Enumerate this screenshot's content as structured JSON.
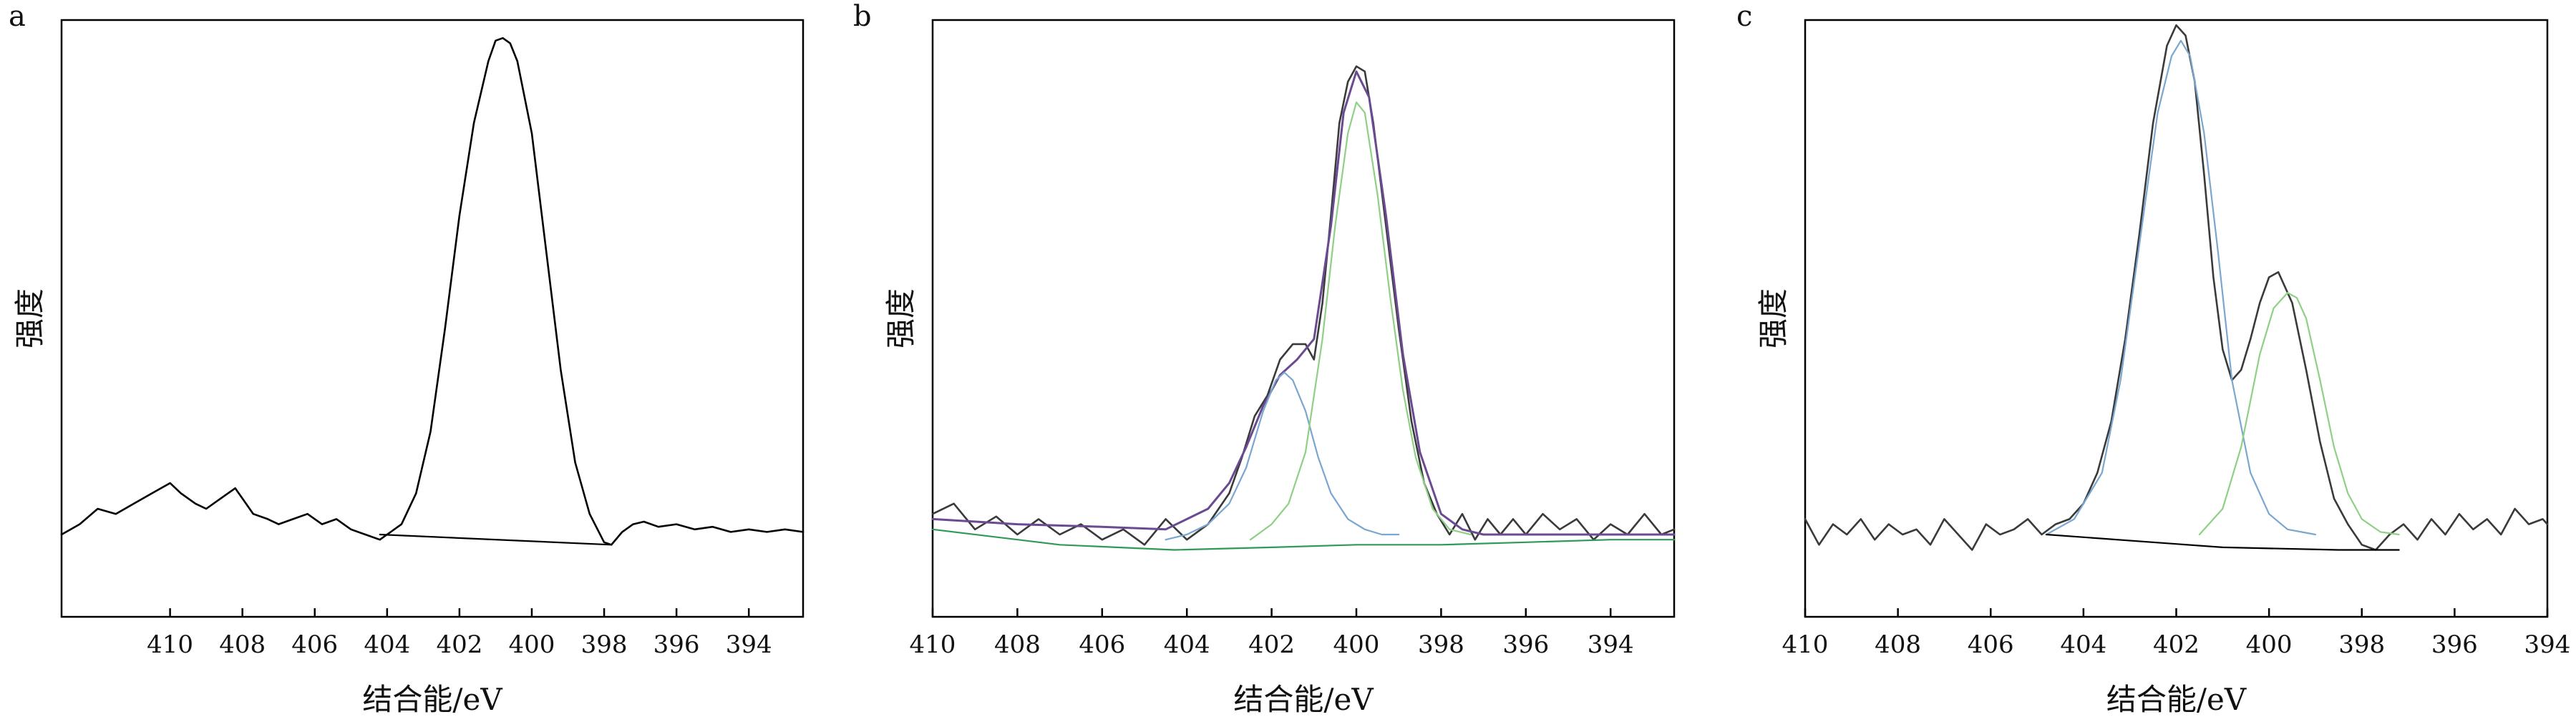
{
  "chart_data": [
    {
      "type": "line",
      "panel_label": "a",
      "xlabel": "结合能/eV",
      "ylabel": "强度",
      "xlim": [
        413,
        392.5
      ],
      "ylim": [
        -0.16,
        1.0
      ],
      "xticks": [
        410,
        408,
        406,
        404,
        402,
        400,
        398,
        396,
        394
      ],
      "legend": "none",
      "grid": false,
      "series": [
        {
          "role": "raw",
          "color": "#000000",
          "x": [
            413,
            412.5,
            412,
            411.5,
            411,
            410.5,
            410,
            409.7,
            409.3,
            409,
            408.6,
            408.2,
            408,
            407.7,
            407.3,
            407,
            406.6,
            406.2,
            405.8,
            405.4,
            405,
            404.6,
            404.2,
            404,
            403.6,
            403.2,
            402.8,
            402.4,
            402,
            401.6,
            401.2,
            401,
            400.8,
            400.6,
            400.4,
            400,
            399.6,
            399.2,
            398.8,
            398.4,
            398,
            397.8,
            397.5,
            397.2,
            396.9,
            396.5,
            396,
            395.5,
            395,
            394.5,
            394,
            393.5,
            393,
            392.5
          ],
          "y": [
            0.0,
            0.02,
            0.05,
            0.04,
            0.06,
            0.08,
            0.1,
            0.08,
            0.06,
            0.05,
            0.07,
            0.09,
            0.07,
            0.04,
            0.03,
            0.02,
            0.03,
            0.04,
            0.02,
            0.03,
            0.01,
            0.0,
            -0.01,
            0.0,
            0.02,
            0.08,
            0.2,
            0.4,
            0.62,
            0.8,
            0.92,
            0.96,
            0.965,
            0.955,
            0.92,
            0.78,
            0.55,
            0.32,
            0.14,
            0.04,
            -0.015,
            -0.02,
            0.005,
            0.02,
            0.025,
            0.015,
            0.02,
            0.01,
            0.015,
            0.005,
            0.01,
            0.005,
            0.01,
            0.005
          ]
        },
        {
          "role": "background",
          "color": "#000000",
          "x": [
            404.2,
            397.8
          ],
          "y": [
            0.0,
            -0.02
          ]
        }
      ]
    },
    {
      "type": "line",
      "panel_label": "b",
      "xlabel": "结合能/eV",
      "ylabel": "强度",
      "xlim": [
        410,
        392.5
      ],
      "ylim": [
        -0.16,
        1.0
      ],
      "xticks": [
        410,
        408,
        406,
        404,
        402,
        400,
        398,
        396,
        394
      ],
      "legend": "none",
      "grid": false,
      "series": [
        {
          "role": "raw",
          "color": "#3a3a3a",
          "x": [
            410,
            409.5,
            409,
            408.5,
            408,
            407.5,
            407,
            406.5,
            406,
            405.5,
            405,
            404.5,
            404,
            403.5,
            403,
            402.7,
            402.4,
            402.1,
            401.8,
            401.5,
            401.2,
            401,
            400.8,
            400.6,
            400.4,
            400.2,
            400,
            399.8,
            399.6,
            399.3,
            399,
            398.7,
            398.4,
            398.1,
            397.8,
            397.5,
            397.2,
            396.9,
            396.6,
            396.3,
            396,
            395.6,
            395.2,
            394.8,
            394.4,
            394,
            393.6,
            393.2,
            392.8,
            392.5
          ],
          "y": [
            0.04,
            0.06,
            0.01,
            0.035,
            0.0,
            0.03,
            0.0,
            0.02,
            -0.01,
            0.01,
            -0.02,
            0.03,
            -0.01,
            0.02,
            0.08,
            0.15,
            0.23,
            0.27,
            0.34,
            0.37,
            0.37,
            0.34,
            0.45,
            0.62,
            0.8,
            0.88,
            0.91,
            0.9,
            0.8,
            0.6,
            0.4,
            0.22,
            0.1,
            0.04,
            0.0,
            0.04,
            -0.01,
            0.03,
            0.0,
            0.03,
            0.0,
            0.04,
            0.01,
            0.03,
            -0.01,
            0.02,
            0.0,
            0.04,
            0.0,
            0.01
          ]
        },
        {
          "role": "envelope",
          "color": "#6a4a90",
          "x": [
            410,
            408,
            406,
            404.5,
            403.5,
            403,
            402.6,
            402.2,
            401.8,
            401.4,
            401,
            400.6,
            400.3,
            400,
            399.7,
            399.3,
            398.9,
            398.5,
            398,
            397.5,
            397,
            396,
            395,
            394,
            393,
            392.5
          ],
          "y": [
            0.03,
            0.02,
            0.015,
            0.01,
            0.05,
            0.1,
            0.17,
            0.25,
            0.31,
            0.34,
            0.38,
            0.6,
            0.82,
            0.9,
            0.85,
            0.62,
            0.35,
            0.16,
            0.04,
            0.01,
            0.0,
            0.0,
            0.0,
            0.0,
            0.0,
            0.0
          ]
        },
        {
          "role": "peak-1",
          "color": "#7aa6d0",
          "x": [
            404.5,
            404,
            403.5,
            403,
            402.6,
            402.2,
            401.9,
            401.7,
            401.5,
            401.2,
            400.9,
            400.6,
            400.2,
            399.8,
            399.4,
            399
          ],
          "y": [
            -0.01,
            0.0,
            0.02,
            0.06,
            0.13,
            0.24,
            0.3,
            0.315,
            0.3,
            0.24,
            0.15,
            0.08,
            0.03,
            0.01,
            0.0,
            0.0
          ]
        },
        {
          "role": "peak-2",
          "color": "#8fcf86",
          "x": [
            402.5,
            402,
            401.6,
            401.2,
            400.8,
            400.5,
            400.2,
            400,
            399.8,
            399.5,
            399.2,
            398.9,
            398.6,
            398.2,
            397.8,
            397.3
          ],
          "y": [
            -0.01,
            0.02,
            0.06,
            0.16,
            0.38,
            0.6,
            0.78,
            0.84,
            0.82,
            0.66,
            0.46,
            0.28,
            0.15,
            0.05,
            0.01,
            0.0
          ]
        },
        {
          "role": "background",
          "color": "#2e9a55",
          "x": [
            410,
            407,
            404.3,
            402,
            400,
            398,
            396,
            394,
            392.5
          ],
          "y": [
            0.01,
            -0.02,
            -0.03,
            -0.025,
            -0.02,
            -0.02,
            -0.015,
            -0.01,
            -0.01
          ]
        }
      ]
    },
    {
      "type": "line",
      "panel_label": "c",
      "xlabel": "结合能/eV",
      "ylabel": "强度",
      "xlim": [
        410,
        394
      ],
      "ylim": [
        -0.16,
        1.0
      ],
      "xticks": [
        410,
        408,
        406,
        404,
        402,
        400,
        398,
        396,
        394
      ],
      "legend": "none",
      "grid": false,
      "series": [
        {
          "role": "raw",
          "color": "#3a3a3a",
          "x": [
            410,
            409.7,
            409.4,
            409.1,
            408.8,
            408.5,
            408.2,
            407.9,
            407.6,
            407.3,
            407,
            406.7,
            406.4,
            406.1,
            405.8,
            405.5,
            405.2,
            404.9,
            404.6,
            404.3,
            404,
            403.7,
            403.4,
            403.1,
            402.8,
            402.5,
            402.2,
            402,
            401.8,
            401.6,
            401.4,
            401.2,
            401,
            400.8,
            400.6,
            400.4,
            400.2,
            400,
            399.8,
            399.5,
            399.2,
            398.9,
            398.6,
            398.3,
            398,
            397.7,
            397.4,
            397.1,
            396.8,
            396.5,
            396.2,
            395.9,
            395.6,
            395.3,
            395,
            394.7,
            394.4,
            394.1,
            394
          ],
          "y": [
            0.03,
            -0.02,
            0.02,
            0.0,
            0.03,
            -0.01,
            0.02,
            0.0,
            0.01,
            -0.02,
            0.03,
            0.0,
            -0.03,
            0.02,
            0.0,
            0.01,
            0.03,
            0.0,
            0.02,
            0.03,
            0.06,
            0.12,
            0.22,
            0.38,
            0.58,
            0.8,
            0.95,
            0.99,
            0.97,
            0.88,
            0.7,
            0.5,
            0.36,
            0.3,
            0.32,
            0.38,
            0.45,
            0.5,
            0.51,
            0.45,
            0.32,
            0.18,
            0.07,
            0.02,
            -0.02,
            -0.03,
            0.0,
            0.02,
            -0.01,
            0.03,
            0.0,
            0.04,
            0.01,
            0.03,
            0.0,
            0.05,
            0.02,
            0.03,
            0.02
          ]
        },
        {
          "role": "peak-1",
          "color": "#7aa6d0",
          "x": [
            404.8,
            404.2,
            403.6,
            403.2,
            402.8,
            402.4,
            402.1,
            401.9,
            401.7,
            401.4,
            401.1,
            400.8,
            400.4,
            400,
            399.6,
            399
          ],
          "y": [
            0.0,
            0.03,
            0.12,
            0.3,
            0.56,
            0.82,
            0.93,
            0.96,
            0.93,
            0.78,
            0.55,
            0.3,
            0.12,
            0.04,
            0.01,
            0.0
          ]
        },
        {
          "role": "peak-2",
          "color": "#8fcf86",
          "x": [
            401.5,
            401,
            400.6,
            400.2,
            399.9,
            399.6,
            399.4,
            399.2,
            398.9,
            398.6,
            398.3,
            398,
            397.6,
            397.2
          ],
          "y": [
            0.0,
            0.05,
            0.17,
            0.35,
            0.44,
            0.47,
            0.46,
            0.42,
            0.3,
            0.17,
            0.08,
            0.03,
            0.005,
            0.0
          ]
        },
        {
          "role": "background",
          "color": "#000000",
          "x": [
            404.8,
            401,
            398.5,
            397.2
          ],
          "y": [
            0.0,
            -0.025,
            -0.03,
            -0.03
          ]
        }
      ]
    }
  ]
}
